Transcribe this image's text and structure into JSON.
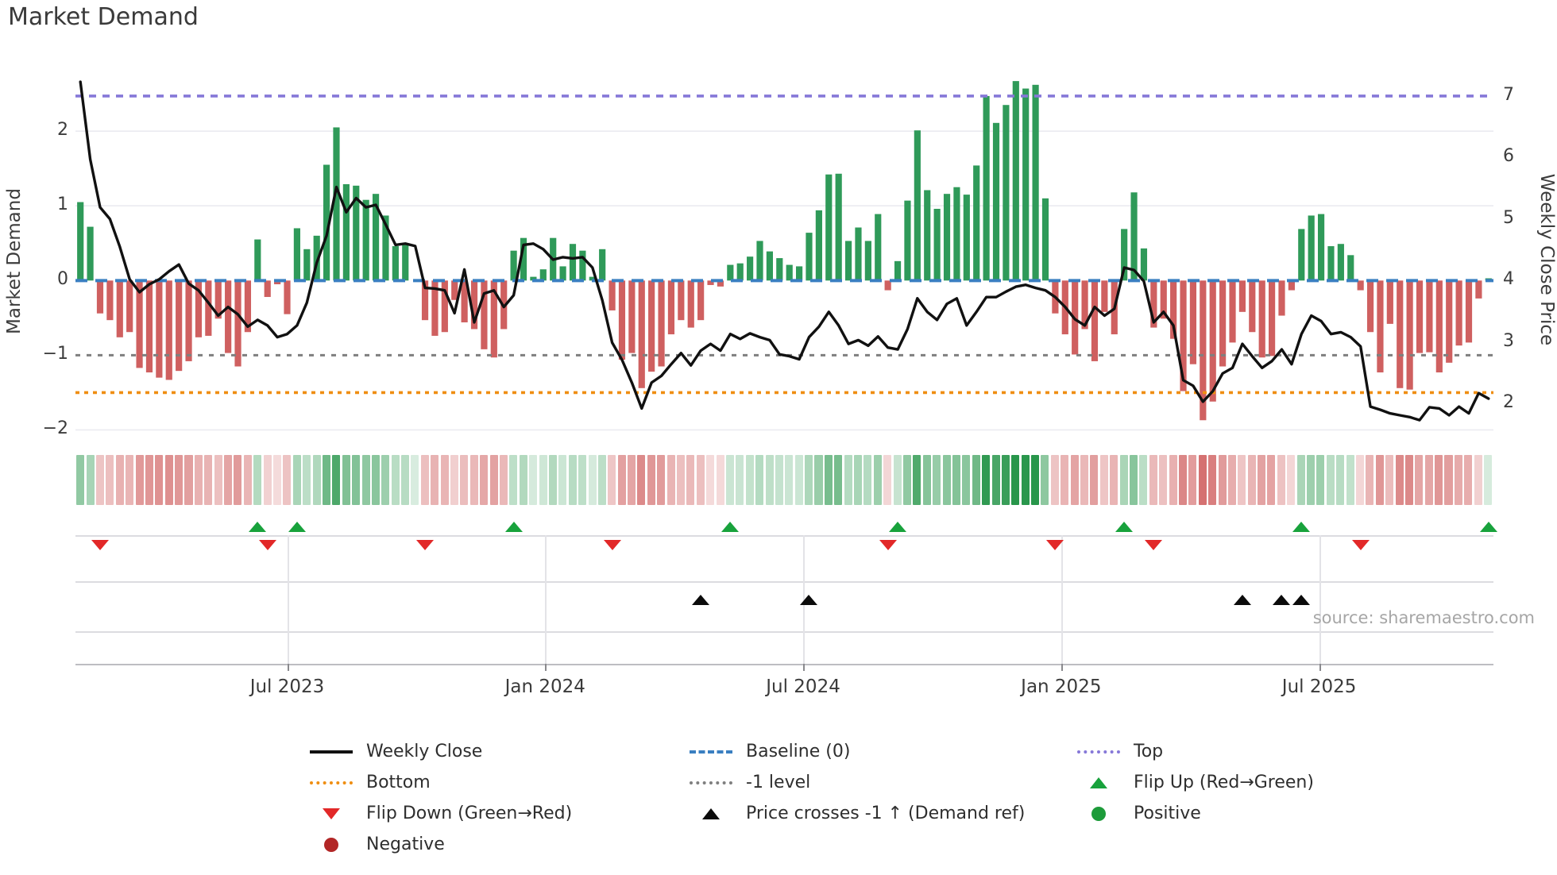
{
  "title": "Market Demand",
  "source_note": "source: sharemaestro.com",
  "axes": {
    "left_label": "Market Demand",
    "right_label": "Weekly Close Price",
    "left_ticks": [
      "2",
      "1",
      "0",
      "−1",
      "−2"
    ],
    "left_tick_values": [
      2,
      1,
      0,
      -1,
      -2
    ],
    "right_ticks": [
      "7",
      "6",
      "5",
      "4",
      "3",
      "2"
    ],
    "right_tick_values": [
      7,
      6,
      5,
      4,
      3,
      2
    ]
  },
  "colors": {
    "demand_positive": "#2f9a59",
    "demand_negative": "#cf6060",
    "weekly_close_line": "#111111",
    "baseline": "#3a7fc1",
    "top_line": "#8678d8",
    "bottom_line": "#ef8e12",
    "minus1_line": "#7f7f7f",
    "flip_up_marker": "#18a23c",
    "flip_down_marker": "#e22828",
    "price_cross_marker": "#0b0b0b",
    "positive_dot": "#1d9b3a",
    "negative_dot": "#b22626",
    "grid": "#ebebf0"
  },
  "legend": {
    "items": [
      {
        "label": "Weekly Close",
        "swatch": "solid-black-line"
      },
      {
        "label": "Baseline (0)",
        "swatch": "blue-dashed-line"
      },
      {
        "label": "Top",
        "swatch": "purple-dotted-line"
      },
      {
        "label": "Bottom",
        "swatch": "orange-dotted-line"
      },
      {
        "label": "-1 level",
        "swatch": "gray-dotted-line"
      },
      {
        "label": "Flip Up (Red→Green)",
        "swatch": "green-up-triangle"
      },
      {
        "label": "Flip Down (Green→Red)",
        "swatch": "red-down-triangle"
      },
      {
        "label": "Price crosses -1 ↑ (Demand ref)",
        "swatch": "black-up-triangle"
      },
      {
        "label": "Positive",
        "swatch": "green-circle"
      },
      {
        "label": "Negative",
        "swatch": "dark-red-circle"
      }
    ]
  },
  "chart_data": {
    "type": "bar+line",
    "title": "Market Demand",
    "x_unit": "week",
    "n_weeks": 144,
    "x_tick_labels": [
      "Jul 2023",
      "Jan 2024",
      "Jul 2024",
      "Jan 2025",
      "Jul 2025"
    ],
    "x_ticks": [
      {
        "label": "Jul 2023",
        "week": 22
      },
      {
        "label": "Jan 2024",
        "week": 48.2
      },
      {
        "label": "Jul 2024",
        "week": 74.4
      },
      {
        "label": "Jan 2025",
        "week": 100.6
      },
      {
        "label": "Jul 2025",
        "week": 126.8
      }
    ],
    "demand_ylim": [
      -2.25,
      2.82
    ],
    "price_axis_ticks": [
      7,
      6,
      5,
      4,
      3,
      2
    ],
    "price_per_demand_unit": 1.2146,
    "reference_lines": {
      "baseline_demand": 0,
      "minus1_demand": -1,
      "bottom_demand": -1.5,
      "top_price": 7
    },
    "demand_bars": [
      1.05,
      0.72,
      -0.44,
      -0.53,
      -0.76,
      -0.69,
      -1.17,
      -1.23,
      -1.3,
      -1.33,
      -1.21,
      -1.08,
      -0.76,
      -0.74,
      -0.51,
      -0.97,
      -1.15,
      -0.69,
      0.55,
      -0.22,
      -0.05,
      -0.45,
      0.7,
      0.42,
      0.6,
      1.55,
      2.05,
      1.29,
      1.27,
      1.08,
      1.16,
      0.87,
      0.46,
      0.49,
      0,
      -0.53,
      -0.74,
      -0.69,
      -0.26,
      -0.56,
      -0.65,
      -0.92,
      -1.03,
      -0.65,
      0.4,
      0.57,
      0.05,
      0.15,
      0.57,
      0.19,
      0.49,
      0.4,
      0.05,
      0.42,
      -0.4,
      -1.06,
      -0.97,
      -1.44,
      -1.22,
      -1.15,
      -0.72,
      -0.53,
      -0.63,
      -0.53,
      -0.06,
      -0.08,
      0.21,
      0.23,
      0.32,
      0.53,
      0.39,
      0.3,
      0.21,
      0.19,
      0.64,
      0.94,
      1.42,
      1.43,
      0.53,
      0.71,
      0.53,
      0.89,
      -0.13,
      0.26,
      1.07,
      2.01,
      1.21,
      0.96,
      1.16,
      1.25,
      1.15,
      1.54,
      2.47,
      2.11,
      2.35,
      2.67,
      2.57,
      2.62,
      1.1,
      -0.44,
      -0.72,
      -0.99,
      -0.65,
      -1.08,
      -0.42,
      -0.72,
      0.69,
      1.18,
      0.43,
      -0.63,
      -0.51,
      -0.78,
      -1.48,
      -1.12,
      -1.87,
      -1.62,
      -1.15,
      -0.83,
      -0.42,
      -0.69,
      -1.03,
      -1.01,
      -0.47,
      -0.13,
      0.69,
      0.87,
      0.89,
      0.46,
      0.49,
      0.34,
      -0.13,
      -0.69,
      -1.23,
      -0.58,
      -1.44,
      -1.46,
      -0.97,
      -0.96,
      -1.23,
      -1.1,
      -0.87,
      -0.83,
      -0.24,
      0.03
    ],
    "weekly_close_price": [
      7.23,
      5.97,
      5.19,
      5.0,
      4.55,
      4.02,
      3.81,
      3.94,
      4.02,
      4.15,
      4.26,
      3.95,
      3.84,
      3.64,
      3.43,
      3.57,
      3.45,
      3.25,
      3.36,
      3.27,
      3.08,
      3.13,
      3.27,
      3.64,
      4.29,
      4.73,
      5.52,
      5.11,
      5.34,
      5.19,
      5.23,
      4.91,
      4.58,
      4.6,
      4.56,
      3.88,
      3.87,
      3.84,
      3.47,
      4.18,
      3.32,
      3.79,
      3.84,
      3.57,
      3.76,
      4.58,
      4.6,
      4.51,
      4.34,
      4.38,
      4.36,
      4.38,
      4.21,
      3.68,
      2.99,
      2.71,
      2.34,
      1.92,
      2.34,
      2.45,
      2.64,
      2.82,
      2.62,
      2.86,
      2.97,
      2.86,
      3.13,
      3.05,
      3.14,
      3.08,
      3.03,
      2.8,
      2.77,
      2.72,
      3.08,
      3.25,
      3.49,
      3.27,
      2.97,
      3.03,
      2.94,
      3.09,
      2.91,
      2.88,
      3.21,
      3.71,
      3.49,
      3.36,
      3.62,
      3.71,
      3.27,
      3.49,
      3.73,
      3.73,
      3.82,
      3.9,
      3.93,
      3.88,
      3.84,
      3.73,
      3.57,
      3.37,
      3.27,
      3.57,
      3.43,
      3.54,
      4.21,
      4.17,
      3.99,
      3.32,
      3.49,
      3.27,
      2.38,
      2.29,
      2.03,
      2.2,
      2.49,
      2.58,
      2.97,
      2.77,
      2.58,
      2.69,
      2.88,
      2.64,
      3.13,
      3.43,
      3.34,
      3.13,
      3.16,
      3.08,
      2.93,
      1.95,
      1.9,
      1.84,
      1.81,
      1.78,
      1.73,
      1.94,
      1.92,
      1.81,
      1.95,
      1.84,
      2.17,
      2.08
    ],
    "markers": {
      "flip_up_weeks": [
        19,
        23,
        45,
        67,
        84,
        107,
        125,
        144
      ],
      "flip_down_weeks": [
        3,
        20,
        36,
        55,
        83,
        100,
        110,
        131
      ],
      "price_cross_minus1_weeks": [
        64,
        75,
        119,
        123,
        125
      ]
    },
    "heatmap": "one cell per week, green for positive demand, red for negative, intensity proportional to |demand|"
  }
}
